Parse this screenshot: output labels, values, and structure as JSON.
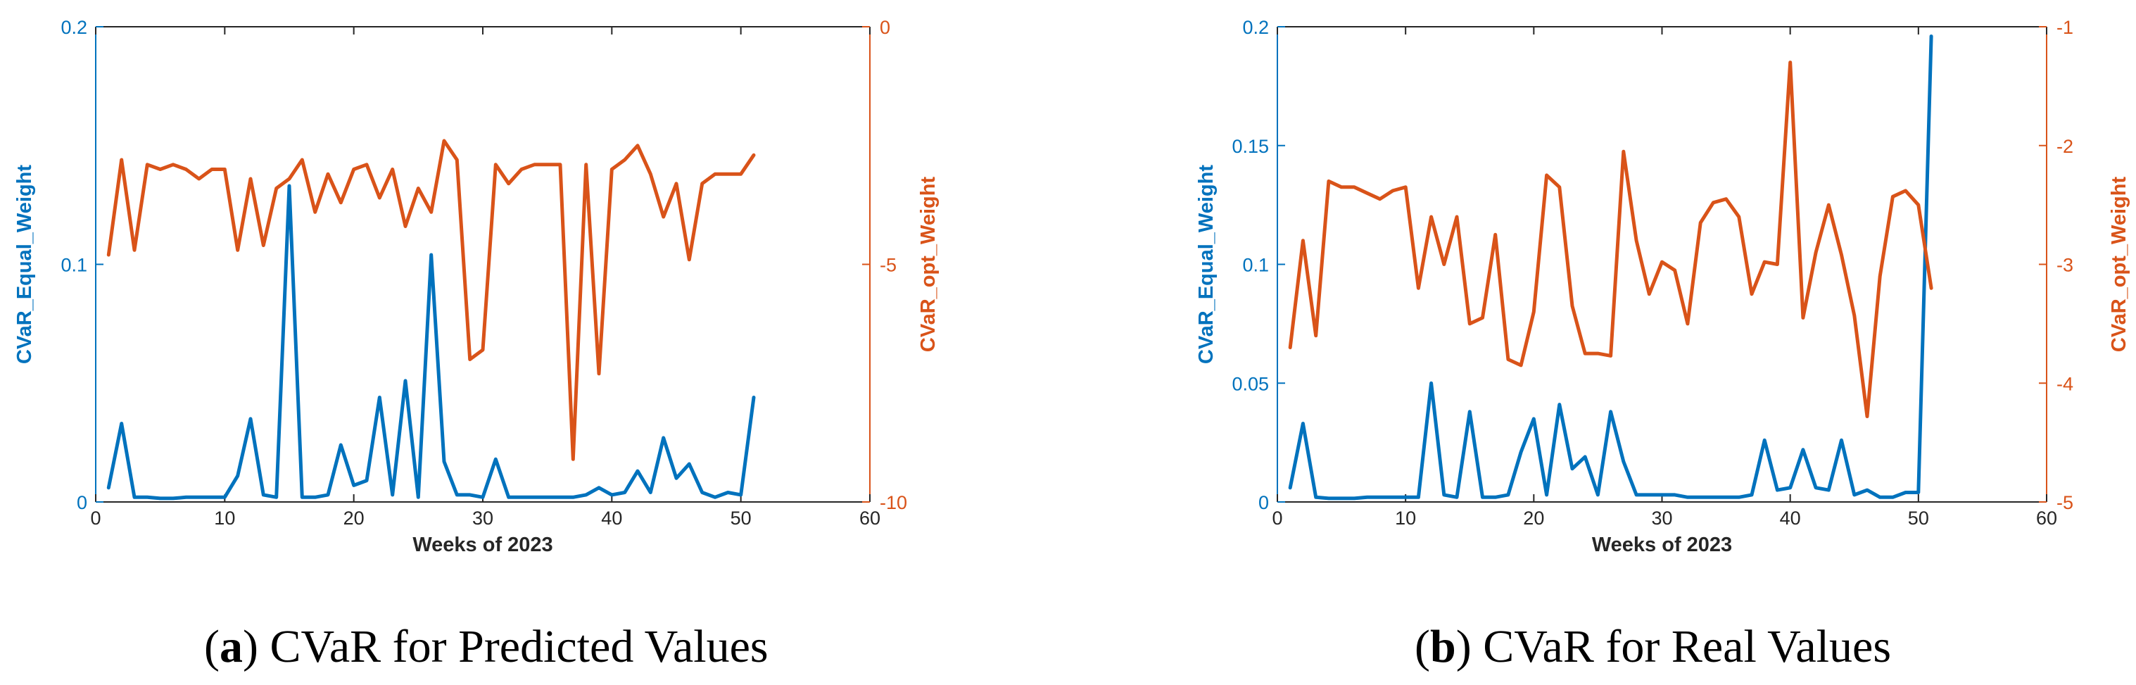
{
  "colors": {
    "left_series": "#0072BD",
    "right_series": "#D95319",
    "axis": "#262626",
    "frame": "#262626"
  },
  "chart_data": [
    {
      "type": "line",
      "caption_label": "a",
      "caption_text": " CVaR for Predicted Values",
      "xlabel": "Weeks of 2023",
      "ylabel_left": "CVaR_Equal_Weight",
      "ylabel_right": "CVaR_opt_Weight",
      "xlim": [
        0,
        60
      ],
      "xticks": [
        "0",
        "10",
        "20",
        "30",
        "40",
        "50",
        "60"
      ],
      "ylim_left": [
        0,
        0.2
      ],
      "yticks_left": [
        "0",
        "0.1",
        "0.2"
      ],
      "ylim_right": [
        -10,
        0
      ],
      "yticks_right": [
        "-10",
        "-5",
        "0"
      ],
      "x": [
        1,
        2,
        3,
        4,
        5,
        6,
        7,
        8,
        9,
        10,
        11,
        12,
        13,
        14,
        15,
        16,
        17,
        18,
        19,
        20,
        21,
        22,
        23,
        24,
        25,
        26,
        27,
        28,
        29,
        30,
        31,
        32,
        33,
        34,
        35,
        36,
        37,
        38,
        39,
        40,
        41,
        42,
        43,
        44,
        45,
        46,
        47,
        48,
        49,
        50,
        51
      ],
      "series": [
        {
          "name": "CVaR_Equal_Weight",
          "axis": "left",
          "values": [
            0.006,
            0.033,
            0.002,
            0.002,
            0.0015,
            0.0015,
            0.002,
            0.002,
            0.002,
            0.002,
            0.011,
            0.035,
            0.003,
            0.002,
            0.133,
            0.002,
            0.002,
            0.003,
            0.024,
            0.007,
            0.009,
            0.044,
            0.003,
            0.051,
            0.002,
            0.104,
            0.017,
            0.003,
            0.003,
            0.002,
            0.018,
            0.002,
            0.002,
            0.002,
            0.002,
            0.002,
            0.002,
            0.003,
            0.006,
            0.003,
            0.004,
            0.013,
            0.004,
            0.027,
            0.01,
            0.016,
            0.004,
            0.002,
            0.004,
            0.003,
            0.044
          ]
        },
        {
          "name": "CVaR_opt_Weight",
          "axis": "right",
          "values": [
            -4.8,
            -2.8,
            -4.7,
            -2.9,
            -3.0,
            -2.9,
            -3.0,
            -3.2,
            -3.0,
            -3.0,
            -4.7,
            -3.2,
            -4.6,
            -3.4,
            -3.2,
            -2.8,
            -3.9,
            -3.1,
            -3.7,
            -3.0,
            -2.9,
            -3.6,
            -3.0,
            -4.2,
            -3.4,
            -3.9,
            -2.4,
            -2.8,
            -7.0,
            -6.8,
            -2.9,
            -3.3,
            -3.0,
            -2.9,
            -2.9,
            -2.9,
            -9.1,
            -2.9,
            -7.3,
            -3.0,
            -2.8,
            -2.5,
            -3.1,
            -4.0,
            -3.3,
            -4.9,
            -3.3,
            -3.1,
            -3.1,
            -3.1,
            -2.7
          ]
        }
      ]
    },
    {
      "type": "line",
      "caption_label": "b",
      "caption_text": " CVaR for Real Values",
      "xlabel": "Weeks of 2023",
      "ylabel_left": "CVaR_Equal_Weight",
      "ylabel_right": "CVaR_opt_Weight",
      "xlim": [
        0,
        60
      ],
      "xticks": [
        "0",
        "10",
        "20",
        "30",
        "40",
        "50",
        "60"
      ],
      "ylim_left": [
        0,
        0.2
      ],
      "yticks_left": [
        "0",
        "0.05",
        "0.1",
        "0.15",
        "0.2"
      ],
      "ylim_right": [
        -5,
        -1
      ],
      "yticks_right": [
        "-5",
        "-4",
        "-3",
        "-2",
        "-1"
      ],
      "x": [
        1,
        2,
        3,
        4,
        5,
        6,
        7,
        8,
        9,
        10,
        11,
        12,
        13,
        14,
        15,
        16,
        17,
        18,
        19,
        20,
        21,
        22,
        23,
        24,
        25,
        26,
        27,
        28,
        29,
        30,
        31,
        32,
        33,
        34,
        35,
        36,
        37,
        38,
        39,
        40,
        41,
        42,
        43,
        44,
        45,
        46,
        47,
        48,
        49,
        50,
        51
      ],
      "series": [
        {
          "name": "CVaR_Equal_Weight",
          "axis": "left",
          "values": [
            0.006,
            0.033,
            0.002,
            0.0015,
            0.0015,
            0.0015,
            0.002,
            0.002,
            0.002,
            0.002,
            0.002,
            0.05,
            0.003,
            0.002,
            0.038,
            0.002,
            0.002,
            0.003,
            0.021,
            0.035,
            0.003,
            0.041,
            0.014,
            0.019,
            0.003,
            0.038,
            0.017,
            0.003,
            0.003,
            0.003,
            0.003,
            0.002,
            0.002,
            0.002,
            0.002,
            0.002,
            0.003,
            0.026,
            0.005,
            0.006,
            0.022,
            0.006,
            0.005,
            0.026,
            0.003,
            0.005,
            0.002,
            0.002,
            0.004,
            0.004,
            0.196
          ]
        },
        {
          "name": "CVaR_opt_Weight",
          "axis": "right",
          "values": [
            -3.7,
            -2.8,
            -3.6,
            -2.3,
            -2.35,
            -2.35,
            -2.4,
            -2.45,
            -2.38,
            -2.35,
            -3.2,
            -2.6,
            -3.0,
            -2.6,
            -3.5,
            -3.45,
            -2.75,
            -3.8,
            -3.85,
            -3.4,
            -2.25,
            -2.35,
            -3.35,
            -3.75,
            -3.75,
            -3.77,
            -2.05,
            -2.8,
            -3.25,
            -2.98,
            -3.05,
            -3.5,
            -2.65,
            -2.48,
            -2.45,
            -2.6,
            -3.25,
            -2.98,
            -3.0,
            -1.3,
            -3.45,
            -2.9,
            -2.5,
            -2.92,
            -3.43,
            -4.28,
            -3.1,
            -2.43,
            -2.38,
            -2.5,
            -3.2
          ]
        }
      ]
    }
  ]
}
